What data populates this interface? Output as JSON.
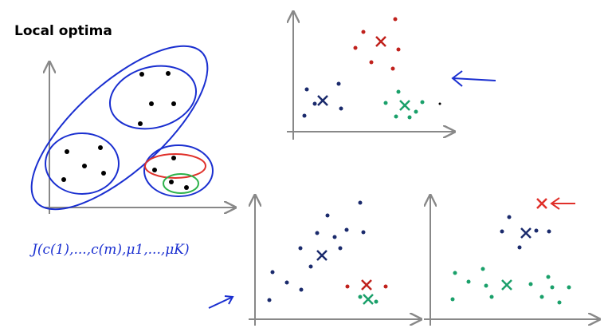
{
  "title": "Local optima",
  "formula": "J(c(1),...,c(m),μ1,...,μK)"
}
